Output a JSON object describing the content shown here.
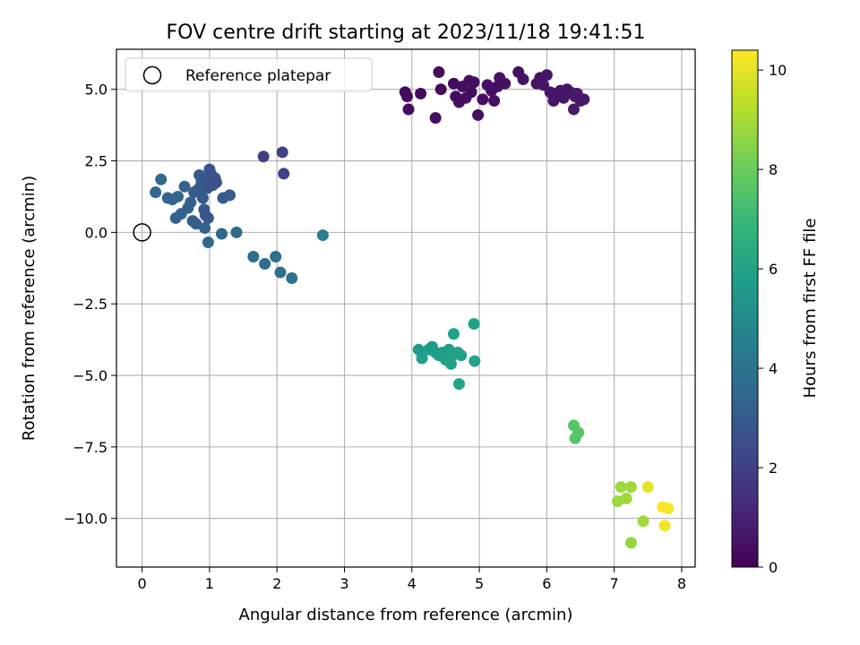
{
  "chart_data": {
    "type": "scatter",
    "title": "FOV centre drift starting at 2023/11/18 19:41:51",
    "xlabel": "Angular distance from reference (arcmin)",
    "ylabel": "Rotation from reference (arcmin)",
    "xlim": [
      -0.38,
      8.2
    ],
    "ylim": [
      -11.7,
      6.4
    ],
    "xticks": [
      0,
      1,
      2,
      3,
      4,
      5,
      6,
      7,
      8
    ],
    "xtick_labels": [
      "0",
      "1",
      "2",
      "3",
      "4",
      "5",
      "6",
      "7",
      "8"
    ],
    "yticks": [
      5.0,
      2.5,
      0.0,
      -2.5,
      -5.0,
      -7.5,
      -10.0
    ],
    "ytick_labels": [
      "5.0",
      "2.5",
      "0.0",
      "−2.5",
      "−5.0",
      "−7.5",
      "−10.0"
    ],
    "grid": true,
    "legend": {
      "placement": "top-left",
      "entry": "Reference platepar"
    },
    "reference_point": {
      "x": 0.0,
      "y": 0.0
    },
    "colorbar": {
      "label": "Hours from first FF file",
      "min": 0.0,
      "max": 10.4,
      "ticks": [
        0,
        2,
        4,
        6,
        8,
        10
      ],
      "tick_labels": [
        "0",
        "2",
        "4",
        "6",
        "8",
        "10"
      ],
      "colormap": "viridis"
    },
    "colormap_stops": [
      "#440154",
      "#482878",
      "#3e4989",
      "#31688e",
      "#26828e",
      "#1f9e89",
      "#35b779",
      "#6ece58",
      "#b5de2b",
      "#fde725"
    ],
    "points": [
      {
        "x": 3.9,
        "y": 4.9,
        "c": 0.3
      },
      {
        "x": 3.93,
        "y": 4.75,
        "c": 0.3
      },
      {
        "x": 3.95,
        "y": 4.3,
        "c": 0.3
      },
      {
        "x": 4.13,
        "y": 4.85,
        "c": 0.3
      },
      {
        "x": 4.35,
        "y": 4.0,
        "c": 0.35
      },
      {
        "x": 4.4,
        "y": 5.6,
        "c": 0.3
      },
      {
        "x": 4.43,
        "y": 5.0,
        "c": 0.3
      },
      {
        "x": 4.62,
        "y": 5.2,
        "c": 0.35
      },
      {
        "x": 4.65,
        "y": 4.75,
        "c": 0.35
      },
      {
        "x": 4.7,
        "y": 4.55,
        "c": 0.35
      },
      {
        "x": 4.75,
        "y": 5.1,
        "c": 0.4
      },
      {
        "x": 4.8,
        "y": 4.7,
        "c": 0.4
      },
      {
        "x": 4.85,
        "y": 5.3,
        "c": 0.4
      },
      {
        "x": 4.88,
        "y": 4.9,
        "c": 0.4
      },
      {
        "x": 4.92,
        "y": 5.25,
        "c": 0.4
      },
      {
        "x": 4.98,
        "y": 4.1,
        "c": 0.4
      },
      {
        "x": 5.05,
        "y": 4.65,
        "c": 0.45
      },
      {
        "x": 5.12,
        "y": 5.15,
        "c": 0.45
      },
      {
        "x": 5.18,
        "y": 4.95,
        "c": 0.45
      },
      {
        "x": 5.22,
        "y": 4.6,
        "c": 0.45
      },
      {
        "x": 5.27,
        "y": 5.1,
        "c": 0.45
      },
      {
        "x": 5.3,
        "y": 5.4,
        "c": 0.5
      },
      {
        "x": 5.38,
        "y": 5.2,
        "c": 0.5
      },
      {
        "x": 5.58,
        "y": 5.6,
        "c": 0.5
      },
      {
        "x": 5.65,
        "y": 5.35,
        "c": 0.55
      },
      {
        "x": 5.85,
        "y": 5.2,
        "c": 0.55
      },
      {
        "x": 5.9,
        "y": 5.4,
        "c": 0.55
      },
      {
        "x": 5.95,
        "y": 5.15,
        "c": 0.6
      },
      {
        "x": 6.0,
        "y": 5.5,
        "c": 0.6
      },
      {
        "x": 6.05,
        "y": 4.9,
        "c": 0.6
      },
      {
        "x": 6.1,
        "y": 4.6,
        "c": 0.6
      },
      {
        "x": 6.15,
        "y": 4.85,
        "c": 0.65
      },
      {
        "x": 6.2,
        "y": 4.95,
        "c": 0.65
      },
      {
        "x": 6.25,
        "y": 4.7,
        "c": 0.65
      },
      {
        "x": 6.3,
        "y": 5.0,
        "c": 0.65
      },
      {
        "x": 6.35,
        "y": 4.9,
        "c": 0.7
      },
      {
        "x": 6.4,
        "y": 4.3,
        "c": 0.7
      },
      {
        "x": 6.42,
        "y": 4.75,
        "c": 0.7
      },
      {
        "x": 6.45,
        "y": 4.85,
        "c": 0.7
      },
      {
        "x": 6.5,
        "y": 4.6,
        "c": 0.7
      },
      {
        "x": 6.55,
        "y": 4.65,
        "c": 0.7
      },
      {
        "x": 1.8,
        "y": 2.65,
        "c": 2.0
      },
      {
        "x": 2.08,
        "y": 2.8,
        "c": 2.0
      },
      {
        "x": 2.1,
        "y": 2.05,
        "c": 2.1
      },
      {
        "x": 0.2,
        "y": 1.4,
        "c": 3.5
      },
      {
        "x": 0.28,
        "y": 1.85,
        "c": 3.5
      },
      {
        "x": 0.38,
        "y": 1.2,
        "c": 3.4
      },
      {
        "x": 0.45,
        "y": 1.15,
        "c": 3.4
      },
      {
        "x": 0.5,
        "y": 0.5,
        "c": 3.3
      },
      {
        "x": 0.53,
        "y": 1.25,
        "c": 3.3
      },
      {
        "x": 0.58,
        "y": 0.65,
        "c": 3.3
      },
      {
        "x": 0.63,
        "y": 1.6,
        "c": 3.2
      },
      {
        "x": 0.68,
        "y": 0.85,
        "c": 3.2
      },
      {
        "x": 0.72,
        "y": 1.05,
        "c": 3.2
      },
      {
        "x": 0.75,
        "y": 0.4,
        "c": 3.1
      },
      {
        "x": 0.77,
        "y": 1.4,
        "c": 3.1
      },
      {
        "x": 0.8,
        "y": 0.3,
        "c": 3.1
      },
      {
        "x": 0.83,
        "y": 1.5,
        "c": 3.0
      },
      {
        "x": 0.85,
        "y": 2.0,
        "c": 3.0
      },
      {
        "x": 0.88,
        "y": 1.75,
        "c": 2.9
      },
      {
        "x": 0.9,
        "y": 1.2,
        "c": 2.9
      },
      {
        "x": 0.92,
        "y": 0.8,
        "c": 2.9
      },
      {
        "x": 0.94,
        "y": 0.6,
        "c": 2.8
      },
      {
        "x": 0.95,
        "y": 1.85,
        "c": 2.8
      },
      {
        "x": 0.97,
        "y": 1.55,
        "c": 2.8
      },
      {
        "x": 0.98,
        "y": 0.5,
        "c": 2.8
      },
      {
        "x": 1.0,
        "y": 2.2,
        "c": 2.7
      },
      {
        "x": 1.02,
        "y": 2.05,
        "c": 2.7
      },
      {
        "x": 1.05,
        "y": 1.65,
        "c": 2.7
      },
      {
        "x": 1.08,
        "y": 1.9,
        "c": 2.7
      },
      {
        "x": 1.1,
        "y": 1.75,
        "c": 2.6
      },
      {
        "x": 0.93,
        "y": 0.15,
        "c": 3.2
      },
      {
        "x": 0.98,
        "y": -0.35,
        "c": 3.5
      },
      {
        "x": 1.18,
        "y": -0.05,
        "c": 3.5
      },
      {
        "x": 1.2,
        "y": 1.2,
        "c": 3.0
      },
      {
        "x": 1.3,
        "y": 1.3,
        "c": 3.0
      },
      {
        "x": 1.4,
        "y": 0.0,
        "c": 3.6
      },
      {
        "x": 1.65,
        "y": -0.85,
        "c": 3.7
      },
      {
        "x": 1.82,
        "y": -1.1,
        "c": 3.7
      },
      {
        "x": 1.98,
        "y": -0.85,
        "c": 3.8
      },
      {
        "x": 2.05,
        "y": -1.4,
        "c": 3.8
      },
      {
        "x": 2.22,
        "y": -1.6,
        "c": 3.9
      },
      {
        "x": 2.68,
        "y": -0.1,
        "c": 4.4
      },
      {
        "x": 4.1,
        "y": -4.1,
        "c": 5.7
      },
      {
        "x": 4.15,
        "y": -4.4,
        "c": 5.8
      },
      {
        "x": 4.25,
        "y": -4.1,
        "c": 5.8
      },
      {
        "x": 4.3,
        "y": -4.0,
        "c": 5.7
      },
      {
        "x": 4.35,
        "y": -4.2,
        "c": 5.8
      },
      {
        "x": 4.4,
        "y": -4.3,
        "c": 5.8
      },
      {
        "x": 4.45,
        "y": -4.2,
        "c": 5.8
      },
      {
        "x": 4.5,
        "y": -4.45,
        "c": 5.9
      },
      {
        "x": 4.55,
        "y": -4.1,
        "c": 5.8
      },
      {
        "x": 4.58,
        "y": -4.6,
        "c": 5.9
      },
      {
        "x": 4.6,
        "y": -4.3,
        "c": 5.9
      },
      {
        "x": 4.62,
        "y": -3.55,
        "c": 5.9
      },
      {
        "x": 4.68,
        "y": -4.2,
        "c": 5.9
      },
      {
        "x": 4.7,
        "y": -5.3,
        "c": 6.0
      },
      {
        "x": 4.73,
        "y": -4.3,
        "c": 5.9
      },
      {
        "x": 4.92,
        "y": -3.2,
        "c": 6.0
      },
      {
        "x": 4.93,
        "y": -4.5,
        "c": 6.0
      },
      {
        "x": 6.4,
        "y": -6.75,
        "c": 7.6
      },
      {
        "x": 6.42,
        "y": -7.2,
        "c": 7.6
      },
      {
        "x": 6.47,
        "y": -7.0,
        "c": 7.6
      },
      {
        "x": 7.05,
        "y": -9.4,
        "c": 8.8
      },
      {
        "x": 7.1,
        "y": -8.9,
        "c": 8.8
      },
      {
        "x": 7.18,
        "y": -9.3,
        "c": 8.9
      },
      {
        "x": 7.25,
        "y": -8.9,
        "c": 8.9
      },
      {
        "x": 7.25,
        "y": -10.85,
        "c": 8.7
      },
      {
        "x": 7.43,
        "y": -10.1,
        "c": 8.9
      },
      {
        "x": 7.5,
        "y": -8.9,
        "c": 10.0
      },
      {
        "x": 7.72,
        "y": -9.6,
        "c": 10.3
      },
      {
        "x": 7.75,
        "y": -10.25,
        "c": 10.2
      },
      {
        "x": 7.8,
        "y": -9.65,
        "c": 10.3
      }
    ]
  }
}
